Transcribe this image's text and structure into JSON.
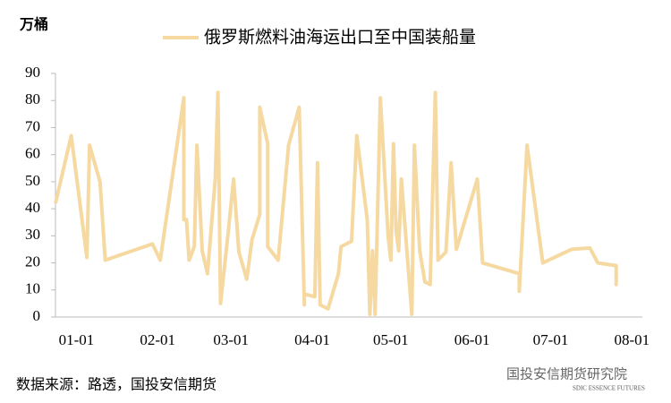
{
  "chart_data": {
    "type": "line",
    "unit_label": "万桶",
    "source": "数据来源：路透，国投安信期货",
    "watermark": "国投安信期货研究院",
    "logo_text": "SDIC ESSENCE FUTURES",
    "x": [
      -8,
      -2,
      4,
      5,
      9,
      11,
      29,
      32,
      41,
      41,
      42,
      43,
      45,
      46,
      48,
      50,
      53,
      54,
      55,
      58,
      60,
      62,
      65,
      67,
      70,
      70,
      73,
      73,
      77,
      81,
      85,
      87,
      87,
      91,
      92,
      93,
      96,
      100,
      101,
      105,
      107,
      111,
      112,
      113,
      114,
      116,
      119,
      120,
      121,
      122,
      123,
      124,
      128,
      129,
      131,
      133,
      135,
      137,
      138,
      141,
      143,
      145,
      153,
      155,
      169,
      169,
      172,
      178,
      189,
      196,
      199,
      206,
      206,
      206
    ],
    "series": [
      {
        "name": "俄罗斯燃料油海运出口至中国装船量",
        "color": "#f5d9a0",
        "values": [
          42,
          67,
          22,
          63.5,
          50,
          21,
          27,
          21,
          81,
          36,
          36,
          21,
          26,
          63.5,
          24.5,
          16,
          51,
          83,
          5,
          32,
          51,
          24,
          14,
          28.5,
          38,
          77.5,
          64,
          26,
          21,
          63.5,
          77.5,
          4.5,
          8.5,
          7.5,
          57,
          4.5,
          3,
          16,
          26,
          28,
          67,
          36,
          1,
          24.5,
          1,
          81,
          29.5,
          21,
          64,
          32,
          24.5,
          51,
          1,
          63.5,
          24.5,
          13,
          12,
          83,
          21,
          24,
          57,
          25,
          51,
          20,
          16,
          9.5,
          63.5,
          20,
          25,
          25.5,
          20,
          19,
          12,
          19
        ]
      }
    ],
    "xlim": [
      -8,
      216
    ],
    "xticks": [
      {
        "value": 0,
        "label": "01-01"
      },
      {
        "value": 31,
        "label": "02-01"
      },
      {
        "value": 59,
        "label": "03-01"
      },
      {
        "value": 90,
        "label": "04-01"
      },
      {
        "value": 120,
        "label": "05-01"
      },
      {
        "value": 151,
        "label": "06-01"
      },
      {
        "value": 181,
        "label": "07-01"
      },
      {
        "value": 212,
        "label": "08-01"
      }
    ],
    "ylim": [
      0,
      90
    ],
    "yticks": [
      0,
      10,
      20,
      30,
      40,
      50,
      60,
      70,
      80,
      90
    ]
  }
}
